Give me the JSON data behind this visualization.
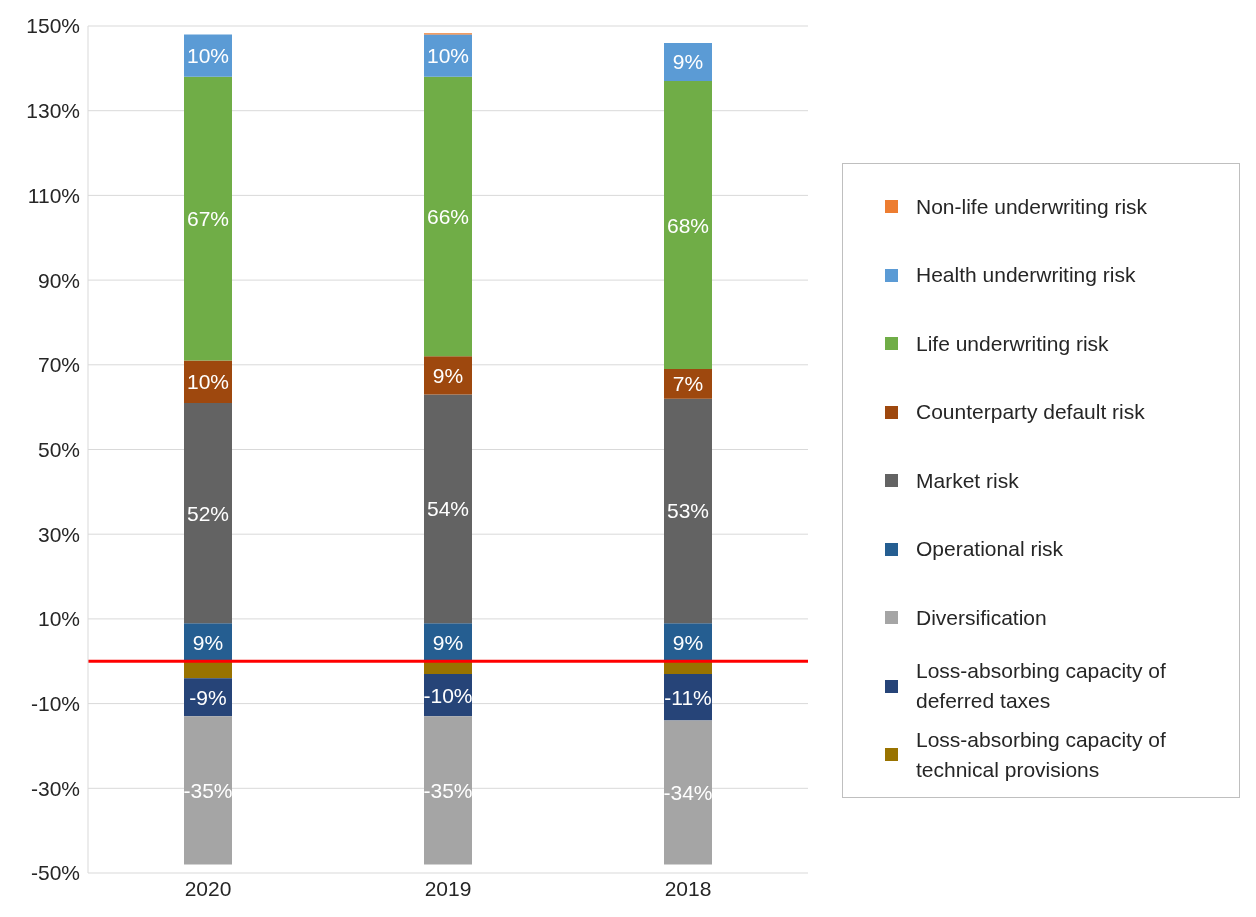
{
  "chart_data": {
    "type": "bar",
    "stacked": true,
    "categories": [
      "2020",
      "2019",
      "2018"
    ],
    "series": [
      {
        "name": "Operational risk",
        "color": "#255e91",
        "values": [
          9,
          9,
          9
        ],
        "value_labels": [
          "9%",
          "9%",
          "9%"
        ]
      },
      {
        "name": "Market risk",
        "color": "#636363",
        "values": [
          52,
          54,
          53
        ],
        "value_labels": [
          "52%",
          "54%",
          "53%"
        ]
      },
      {
        "name": "Counterparty default risk",
        "color": "#9e480e",
        "values": [
          10,
          9,
          7
        ],
        "value_labels": [
          "10%",
          "9%",
          "7%"
        ]
      },
      {
        "name": "Life underwriting risk",
        "color": "#70ad47",
        "values": [
          67,
          66,
          68
        ],
        "value_labels": [
          "67%",
          "66%",
          "68%"
        ]
      },
      {
        "name": "Health underwriting risk",
        "color": "#5b9bd5",
        "values": [
          10,
          10,
          9
        ],
        "value_labels": [
          "10%",
          "10%",
          "9%"
        ]
      },
      {
        "name": "Non-life underwriting risk",
        "color": "#ed7d31",
        "values": [
          0,
          0.3,
          0
        ],
        "value_labels": [
          null,
          null,
          null
        ]
      },
      {
        "name": "Loss-absorbing capacity of technical provisions",
        "color": "#997300",
        "values": [
          -4,
          -3,
          -3
        ],
        "value_labels": [
          null,
          null,
          null
        ]
      },
      {
        "name": "Loss-absorbing capacity of deferred taxes",
        "color": "#264478",
        "values": [
          -9,
          -10,
          -11
        ],
        "value_labels": [
          "-9%",
          "-10%",
          "-11%"
        ]
      },
      {
        "name": "Diversification",
        "color": "#a5a5a5",
        "values": [
          -35,
          -35,
          -34
        ],
        "value_labels": [
          "-35%",
          "-35%",
          "-34%"
        ]
      }
    ],
    "ylim": [
      -50,
      150
    ],
    "yticks": [
      {
        "value": -50,
        "label": "-50%"
      },
      {
        "value": -30,
        "label": "-30%"
      },
      {
        "value": -10,
        "label": "-10%"
      },
      {
        "value": 10,
        "label": "10%"
      },
      {
        "value": 30,
        "label": "30%"
      },
      {
        "value": 50,
        "label": "50%"
      },
      {
        "value": 70,
        "label": "70%"
      },
      {
        "value": 90,
        "label": "90%"
      },
      {
        "value": 110,
        "label": "110%"
      },
      {
        "value": 130,
        "label": "130%"
      },
      {
        "value": 150,
        "label": "150%"
      }
    ],
    "grid": "y",
    "legend": "right",
    "ref_lines": [
      {
        "axis": "y",
        "value": 0,
        "color": "#ff0000"
      }
    ]
  }
}
